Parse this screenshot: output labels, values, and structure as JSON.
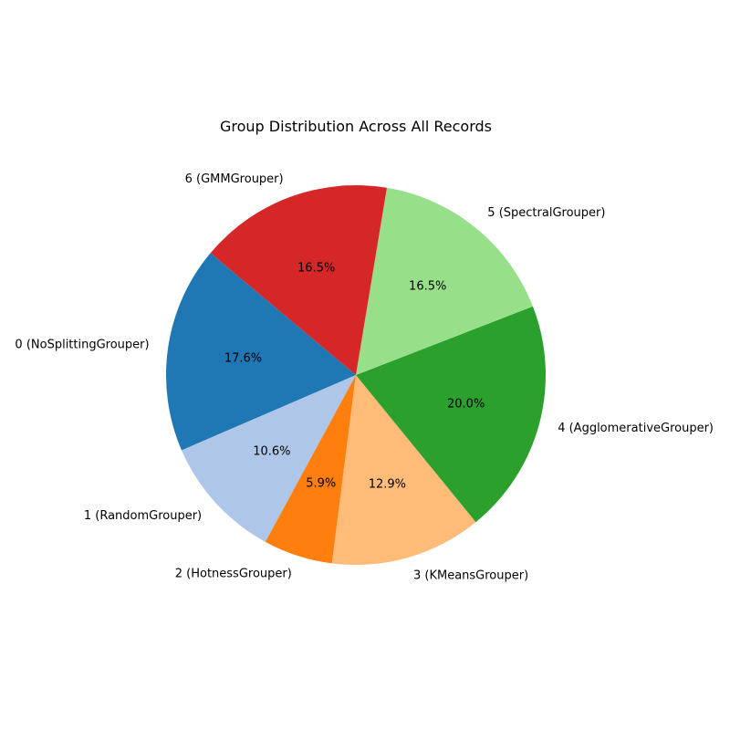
{
  "chart_data": {
    "type": "pie",
    "title": "Group Distribution Across All Records",
    "labels": [
      "0 (NoSplittingGrouper)",
      "1 (RandomGrouper)",
      "2 (HotnessGrouper)",
      "3 (KMeansGrouper)",
      "4 (AgglomerativeGrouper)",
      "5 (SpectralGrouper)",
      "6 (GMMGrouper)"
    ],
    "values": [
      17.6,
      10.6,
      5.9,
      12.9,
      20.0,
      16.5,
      16.5
    ],
    "percent_labels": [
      "17.6%",
      "10.6%",
      "5.9%",
      "12.9%",
      "20.0%",
      "16.5%",
      "16.5%"
    ],
    "colors": [
      "#1f77b4",
      "#aec7e8",
      "#ff7f0e",
      "#ffbb78",
      "#2ca02c",
      "#98df8a",
      "#d62728"
    ],
    "start_angle_deg": 140,
    "direction": "counterclockwise",
    "legend": "none"
  }
}
